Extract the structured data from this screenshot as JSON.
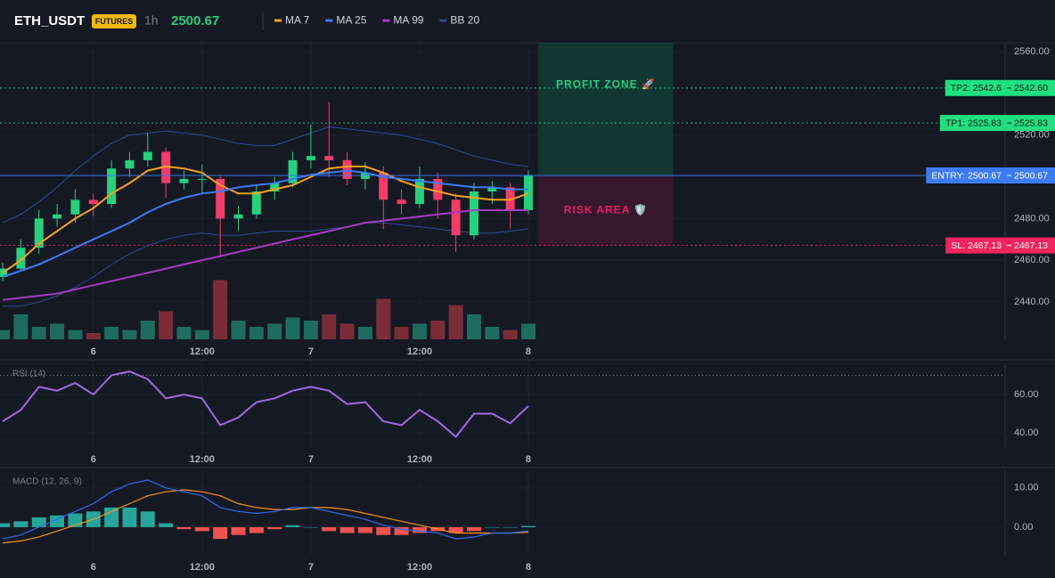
{
  "header": {
    "symbol": "ETH_USDT",
    "badge": "FUTURES",
    "interval": "1h",
    "price": 2500.67
  },
  "chart_data": [
    {
      "type": "candlestick",
      "x": [
        0,
        2,
        4,
        6,
        8,
        10,
        12,
        14,
        16,
        18,
        20,
        22,
        24,
        26,
        28,
        30,
        32,
        34,
        36,
        38,
        40,
        42,
        44,
        46,
        48,
        50,
        52,
        54,
        56,
        58
      ],
      "open": [
        2452,
        2456,
        2466,
        2480,
        2482,
        2489,
        2487,
        2504,
        2508,
        2512,
        2497,
        2499,
        2499,
        2480,
        2482,
        2493,
        2497,
        2508,
        2510,
        2508,
        2499,
        2502,
        2489,
        2487,
        2499,
        2489,
        2472,
        2493,
        2495,
        2484
      ],
      "high": [
        2459,
        2470,
        2484,
        2487,
        2494,
        2492,
        2508,
        2512,
        2521,
        2514,
        2503,
        2506,
        2501,
        2486,
        2496,
        2500,
        2512,
        2525,
        2536,
        2512,
        2507,
        2505,
        2494,
        2505,
        2502,
        2492,
        2497,
        2498,
        2497,
        2503
      ],
      "low": [
        2450,
        2455,
        2463,
        2476,
        2478,
        2481,
        2485,
        2500,
        2505,
        2490,
        2494,
        2492,
        2462,
        2474,
        2480,
        2489,
        2495,
        2504,
        2500,
        2496,
        2494,
        2475,
        2482,
        2485,
        2480,
        2464,
        2470,
        2487,
        2475,
        2482
      ],
      "close": [
        2456,
        2466,
        2480,
        2482,
        2489,
        2487,
        2504,
        2508,
        2512,
        2497,
        2499,
        2499,
        2480,
        2482,
        2493,
        2497,
        2508,
        2510,
        2508,
        2499,
        2502,
        2489,
        2487,
        2499,
        2489,
        2472,
        2493,
        2495,
        2484,
        2500.67
      ],
      "volume": [
        15,
        40,
        20,
        25,
        15,
        10,
        20,
        15,
        30,
        45,
        20,
        15,
        95,
        30,
        20,
        25,
        35,
        30,
        40,
        25,
        20,
        65,
        20,
        25,
        30,
        55,
        40,
        20,
        15,
        25
      ],
      "vlim": [
        0,
        100
      ],
      "up_color": "#26d07c",
      "down_color": "#f23c6a",
      "volume_up_color": "#1e6b60",
      "volume_down_color": "#7a2d38",
      "overlays": [
        {
          "name": "MA 7",
          "color": "#f7a21b",
          "values": [
            2454,
            2460,
            2468,
            2474,
            2480,
            2485,
            2492,
            2497,
            2503,
            2505,
            2504,
            2502,
            2496,
            2492,
            2492,
            2494,
            2496,
            2500,
            2504,
            2505,
            2505,
            2502,
            2498,
            2495,
            2493,
            2491,
            2490,
            2489,
            2489,
            2492
          ]
        },
        {
          "name": "MA 25",
          "color": "#3d7bf5",
          "values": [
            2452,
            2455,
            2458,
            2462,
            2466,
            2470,
            2474,
            2478,
            2483,
            2487,
            2490,
            2492,
            2493,
            2495,
            2496,
            2497,
            2499,
            2501,
            2502,
            2503,
            2502,
            2500,
            2499,
            2498,
            2497,
            2496,
            2495,
            2495,
            2494,
            2494
          ]
        },
        {
          "name": "MA 99",
          "color": "#a43cc0",
          "values": [
            2441,
            2442,
            2443,
            2444,
            2446,
            2448,
            2450,
            2452,
            2454,
            2456,
            2458,
            2460,
            2462,
            2464,
            2466,
            2468,
            2470,
            2472,
            2474,
            2476,
            2478,
            2479,
            2480,
            2481,
            2482,
            2483,
            2484,
            2484,
            2484,
            2484
          ]
        },
        {
          "name": "BB 20",
          "color": "#2c4a8c",
          "upper": [
            2478,
            2482,
            2488,
            2495,
            2503,
            2510,
            2516,
            2520,
            2521,
            2522,
            2521,
            2520,
            2518,
            2516,
            2515,
            2515,
            2518,
            2521,
            2524,
            2523,
            2522,
            2521,
            2520,
            2518,
            2516,
            2513,
            2510,
            2508,
            2506,
            2505
          ],
          "lower": [
            2438,
            2438,
            2440,
            2443,
            2447,
            2452,
            2458,
            2463,
            2467,
            2470,
            2472,
            2473,
            2472,
            2472,
            2473,
            2474,
            2474,
            2474,
            2475,
            2476,
            2478,
            2478,
            2477,
            2476,
            2475,
            2474,
            2473,
            2473,
            2474,
            2475
          ]
        }
      ],
      "levels": [
        {
          "label": "TP2: 2542.6",
          "value": 2542.6,
          "price_label": "2542.60",
          "color": "#1ee07f",
          "text_color": "#0b1a12"
        },
        {
          "label": "TP1: 2525.83",
          "value": 2525.83,
          "price_label": "2525.83",
          "color": "#1ee07f",
          "text_color": "#0b1a12"
        },
        {
          "label": "ENTRY: 2500.67",
          "value": 2500.67,
          "price_label": "2500.67",
          "color": "#3d7bf5",
          "text_color": "#ffffff"
        },
        {
          "label": "SL: 2467.13",
          "value": 2467.13,
          "price_label": "2467.13",
          "color": "#f2245f",
          "text_color": "#ffffff"
        }
      ],
      "zones": [
        {
          "label": "PROFIT ZONE 🚀",
          "color": "#0f3b33",
          "text_color": "#26d07c"
        },
        {
          "label": "RISK AREA 🛡️",
          "color": "#3a1830",
          "text_color": "#e91e63"
        }
      ],
      "zone_x": [
        59.1,
        74
      ],
      "xlim": [
        -0.3,
        110.6
      ],
      "xticks": [
        {
          "value": 10,
          "label": "6"
        },
        {
          "value": 22,
          "label": "12:00"
        },
        {
          "value": 34,
          "label": "7"
        },
        {
          "value": 46,
          "label": "12:00"
        },
        {
          "value": 58,
          "label": "8"
        }
      ],
      "ylim": [
        2422.1,
        2564.3
      ],
      "yticks": [
        {
          "value": 2560,
          "label": "2560.00"
        },
        {
          "value": 2520,
          "label": "2520.00"
        },
        {
          "value": 2480,
          "label": "2480.00"
        },
        {
          "value": 2460,
          "label": "2460.00"
        },
        {
          "value": 2440,
          "label": "2440.00"
        }
      ],
      "grid": true
    },
    {
      "type": "line",
      "title": "RSI (14)",
      "x": [
        0,
        2,
        4,
        6,
        8,
        10,
        12,
        14,
        16,
        18,
        20,
        22,
        24,
        26,
        28,
        30,
        32,
        34,
        36,
        38,
        40,
        42,
        44,
        46,
        48,
        50,
        52,
        54,
        56,
        58
      ],
      "values": [
        46,
        52,
        64,
        62,
        66,
        60,
        70,
        72,
        68,
        58,
        60,
        58,
        44,
        48,
        56,
        58,
        62,
        64,
        62,
        55,
        56,
        46,
        44,
        52,
        46,
        38,
        50,
        50,
        45,
        54
      ],
      "color": "#9c6ade",
      "overbought": 70,
      "xlim": [
        -0.3,
        110.6
      ],
      "xticks": [
        {
          "value": 10,
          "label": "6"
        },
        {
          "value": 22,
          "label": "12:00"
        },
        {
          "value": 34,
          "label": "7"
        },
        {
          "value": 46,
          "label": "12:00"
        },
        {
          "value": 58,
          "label": "8"
        }
      ],
      "ylim": [
        32.6,
        76.7
      ],
      "yticks": [
        {
          "value": 60,
          "label": "60.00"
        },
        {
          "value": 40,
          "label": "40.00"
        }
      ],
      "grid": true
    },
    {
      "type": "macd",
      "title": "MACD (12, 26, 9)",
      "x": [
        0,
        2,
        4,
        6,
        8,
        10,
        12,
        14,
        16,
        18,
        20,
        22,
        24,
        26,
        28,
        30,
        32,
        34,
        36,
        38,
        40,
        42,
        44,
        46,
        48,
        50,
        52,
        54,
        56,
        58
      ],
      "macd": [
        -3,
        -2,
        0,
        2,
        4,
        6,
        9,
        11,
        12,
        10,
        9,
        8,
        5,
        4,
        3.5,
        4,
        5,
        5,
        4,
        3,
        2,
        0.5,
        -0.5,
        -1,
        -1.5,
        -3,
        -2.5,
        -1.5,
        -1.5,
        -1
      ],
      "signal": [
        -4,
        -3.5,
        -2.5,
        -1,
        0.5,
        2,
        4,
        6,
        8,
        9,
        9.5,
        9,
        8,
        6,
        5,
        4.5,
        4.5,
        5,
        5,
        4.5,
        3.5,
        2.5,
        1.5,
        0.5,
        -0.5,
        -1.5,
        -1.5,
        -1.5,
        -1.5,
        -1.3
      ],
      "histogram": [
        1,
        1.5,
        2.5,
        3,
        3.5,
        4,
        5,
        5,
        4,
        1,
        -0.5,
        -1,
        -3,
        -2,
        -1.5,
        -0.5,
        0.5,
        0,
        -1,
        -1.5,
        -1.5,
        -2,
        -2,
        -1.5,
        -1,
        -1.5,
        -1,
        0,
        0,
        0.3
      ],
      "macd_color": "#2f6bf0",
      "signal_color": "#f7931a",
      "hist_up_color": "#26a69a",
      "hist_down_color": "#ef5350",
      "xlim": [
        -0.3,
        110.6
      ],
      "xticks": [
        {
          "value": 10,
          "label": "6"
        },
        {
          "value": 22,
          "label": "12:00"
        },
        {
          "value": 34,
          "label": "7"
        },
        {
          "value": 46,
          "label": "12:00"
        },
        {
          "value": 58,
          "label": "8"
        }
      ],
      "ylim": [
        -7.05,
        14.5
      ],
      "yticks": [
        {
          "value": 10,
          "label": "10.00"
        },
        {
          "value": 0,
          "label": "0.00"
        }
      ],
      "grid": true
    }
  ]
}
